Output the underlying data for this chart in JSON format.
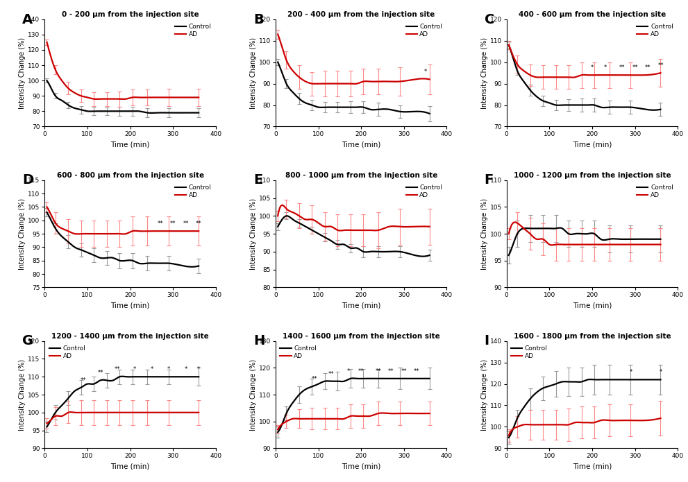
{
  "panels": [
    {
      "label": "A",
      "title": "0 - 200 μm from the injection site",
      "ylim": [
        70,
        140
      ],
      "ytick_step": 10,
      "control": [
        100,
        95,
        90,
        87,
        84,
        82,
        81,
        80,
        80,
        80,
        80,
        80,
        80,
        80,
        80,
        80,
        79,
        79,
        79,
        79,
        79
      ],
      "ad": [
        125,
        115,
        107,
        100,
        95,
        92,
        90,
        89,
        88,
        88,
        88,
        88,
        88,
        88,
        89,
        89,
        89,
        89,
        89,
        89,
        89
      ],
      "control_err": [
        1.5,
        1.5,
        1.8,
        2.0,
        2.0,
        2.2,
        2.5,
        2.5,
        2.5,
        2.5,
        2.5,
        2.5,
        2.8,
        2.8,
        2.8,
        2.8,
        2.8,
        3.0,
        3.0,
        3.0,
        3.0
      ],
      "ad_err": [
        2.0,
        2.5,
        3.0,
        3.5,
        4.0,
        4.0,
        4.0,
        4.0,
        4.5,
        4.5,
        4.5,
        4.5,
        5.0,
        5.0,
        5.0,
        5.0,
        5.0,
        5.5,
        5.5,
        5.5,
        5.5
      ],
      "sig_times": [],
      "sig_labels": [],
      "legend_loc": "upper right"
    },
    {
      "label": "B",
      "title": "200 - 400 μm from the injection site",
      "ylim": [
        70,
        120
      ],
      "ytick_step": 10,
      "control": [
        100,
        95,
        90,
        86,
        83,
        81,
        80,
        79,
        79,
        79,
        79,
        79,
        79,
        79,
        79,
        78,
        78,
        78,
        77,
        77,
        76
      ],
      "ad": [
        113,
        107,
        101,
        96,
        93,
        91,
        90,
        90,
        90,
        90,
        90,
        90,
        90,
        90,
        91,
        91,
        91,
        91,
        91,
        92,
        92
      ],
      "control_err": [
        1.5,
        1.8,
        2.0,
        2.2,
        2.5,
        2.5,
        2.5,
        2.5,
        2.5,
        2.5,
        2.5,
        2.8,
        2.8,
        2.8,
        2.8,
        3.0,
        3.0,
        3.0,
        3.0,
        3.0,
        3.5
      ],
      "ad_err": [
        2.0,
        3.0,
        4.0,
        5.0,
        5.5,
        5.5,
        5.5,
        5.5,
        6.0,
        6.0,
        6.0,
        6.0,
        6.0,
        6.0,
        6.0,
        6.0,
        6.0,
        6.5,
        6.5,
        6.5,
        7.0
      ],
      "sig_times": [
        350
      ],
      "sig_labels": [
        "*"
      ],
      "legend_loc": "upper right"
    },
    {
      "label": "C",
      "title": "400 - 600 μm from the injection site",
      "ylim": [
        70,
        120
      ],
      "ytick_step": 10,
      "control": [
        108,
        102,
        96,
        91,
        87,
        84,
        82,
        81,
        80,
        80,
        80,
        80,
        80,
        80,
        80,
        79,
        79,
        79,
        79,
        78,
        78
      ],
      "ad": [
        108,
        103,
        99,
        96,
        94,
        93,
        93,
        93,
        93,
        93,
        93,
        93,
        94,
        94,
        94,
        94,
        94,
        94,
        94,
        94,
        95
      ],
      "control_err": [
        1.5,
        1.8,
        2.0,
        2.2,
        2.5,
        2.5,
        2.5,
        2.5,
        2.5,
        2.8,
        2.8,
        2.8,
        3.0,
        3.0,
        3.0,
        3.0,
        3.0,
        3.0,
        3.0,
        3.0,
        3.0
      ],
      "ad_err": [
        2.0,
        3.0,
        4.0,
        5.0,
        5.0,
        5.0,
        5.5,
        5.5,
        5.5,
        5.5,
        5.5,
        5.5,
        6.0,
        6.0,
        6.0,
        6.0,
        6.0,
        6.0,
        6.0,
        6.5,
        6.5
      ],
      "sig_times": [
        200,
        230,
        270,
        300,
        330,
        360
      ],
      "sig_labels": [
        "*",
        "*",
        "**",
        "**",
        "**",
        "**"
      ],
      "legend_loc": "upper right"
    },
    {
      "label": "D",
      "title": "600 - 800 μm from the injection site",
      "ylim": [
        75,
        115
      ],
      "ytick_step": 5,
      "control": [
        103,
        100,
        97,
        94,
        92,
        90,
        89,
        88,
        87,
        86,
        86,
        86,
        85,
        85,
        85,
        84,
        84,
        84,
        84,
        83,
        83
      ],
      "ad": [
        105,
        102,
        99,
        97,
        96,
        95,
        95,
        95,
        95,
        95,
        95,
        95,
        95,
        95,
        96,
        96,
        96,
        96,
        96,
        96,
        96
      ],
      "control_err": [
        1.5,
        1.8,
        2.0,
        2.2,
        2.5,
        2.5,
        2.5,
        2.5,
        2.5,
        2.5,
        2.5,
        2.8,
        2.8,
        2.8,
        2.8,
        2.8,
        2.8,
        2.8,
        2.8,
        2.8,
        2.8
      ],
      "ad_err": [
        2.0,
        3.0,
        4.0,
        4.5,
        4.5,
        5.0,
        5.0,
        5.0,
        5.0,
        5.0,
        5.0,
        5.0,
        5.0,
        5.0,
        5.5,
        5.5,
        5.5,
        5.5,
        5.5,
        5.5,
        5.5
      ],
      "sig_times": [
        270,
        300,
        330,
        360
      ],
      "sig_labels": [
        "**",
        "**",
        "**",
        "**"
      ],
      "legend_loc": "upper right"
    },
    {
      "label": "E",
      "title": "800 - 1000 μm from the injection site",
      "ylim": [
        80,
        110
      ],
      "ytick_step": 5,
      "control": [
        97,
        99,
        100,
        99,
        98,
        97,
        96,
        95,
        94,
        93,
        92,
        92,
        91,
        91,
        90,
        90,
        90,
        90,
        90,
        89,
        89
      ],
      "ad": [
        100,
        103,
        102,
        101,
        100,
        99,
        99,
        98,
        97,
        97,
        96,
        96,
        96,
        96,
        96,
        96,
        96,
        97,
        97,
        97,
        97
      ],
      "control_err": [
        1.0,
        1.0,
        1.0,
        1.0,
        1.0,
        1.0,
        1.0,
        1.2,
        1.2,
        1.2,
        1.2,
        1.2,
        1.2,
        1.2,
        1.5,
        1.5,
        1.5,
        1.5,
        1.5,
        1.5,
        1.5
      ],
      "ad_err": [
        1.5,
        2.0,
        2.5,
        3.0,
        3.5,
        3.5,
        4.0,
        4.0,
        4.0,
        4.0,
        4.5,
        4.5,
        4.5,
        4.5,
        4.5,
        4.5,
        5.0,
        5.0,
        5.0,
        5.0,
        5.0
      ],
      "sig_times": [],
      "sig_labels": [],
      "legend_loc": "upper right"
    },
    {
      "label": "F",
      "title": "1000 - 1200 μm from the injection site",
      "ylim": [
        90,
        110
      ],
      "ytick_step": 5,
      "control": [
        96,
        98,
        100,
        101,
        101,
        101,
        101,
        101,
        101,
        101,
        100,
        100,
        100,
        100,
        100,
        99,
        99,
        99,
        99,
        99,
        99
      ],
      "ad": [
        100,
        102,
        102,
        101,
        100,
        99,
        99,
        98,
        98,
        98,
        98,
        98,
        98,
        98,
        98,
        98,
        98,
        98,
        98,
        98,
        98
      ],
      "control_err": [
        1.5,
        2.0,
        2.5,
        2.5,
        2.5,
        2.5,
        2.5,
        2.5,
        2.5,
        2.5,
        2.5,
        2.5,
        2.5,
        2.5,
        2.5,
        2.5,
        2.5,
        2.5,
        2.5,
        2.5,
        2.5
      ],
      "ad_err": [
        1.0,
        1.5,
        2.0,
        2.5,
        3.0,
        3.0,
        3.0,
        3.0,
        3.0,
        3.0,
        3.0,
        3.0,
        3.0,
        3.0,
        3.0,
        3.0,
        3.0,
        3.0,
        3.0,
        3.0,
        3.0
      ],
      "sig_times": [],
      "sig_labels": [],
      "legend_loc": "upper right"
    },
    {
      "label": "G",
      "title": "1200 - 1400 μm from the injection site",
      "ylim": [
        90,
        120
      ],
      "ytick_step": 5,
      "control": [
        96,
        98,
        100,
        102,
        104,
        106,
        107,
        108,
        108,
        109,
        109,
        109,
        110,
        110,
        110,
        110,
        110,
        110,
        110,
        110,
        110
      ],
      "ad": [
        97,
        98,
        99,
        99,
        100,
        100,
        100,
        100,
        100,
        100,
        100,
        100,
        100,
        100,
        100,
        100,
        100,
        100,
        100,
        100,
        100
      ],
      "control_err": [
        1.5,
        1.5,
        2.0,
        2.0,
        2.0,
        2.0,
        2.0,
        2.0,
        2.0,
        2.0,
        2.0,
        2.0,
        2.0,
        2.0,
        2.0,
        2.0,
        2.0,
        2.0,
        2.0,
        2.5,
        2.5
      ],
      "ad_err": [
        1.5,
        2.0,
        2.5,
        3.0,
        3.0,
        3.0,
        3.5,
        3.5,
        3.5,
        3.5,
        3.5,
        3.5,
        3.5,
        3.5,
        3.5,
        3.5,
        3.5,
        3.5,
        3.5,
        3.5,
        3.5
      ],
      "sig_times": [
        90,
        130,
        170,
        210,
        250,
        290,
        330,
        360
      ],
      "sig_labels": [
        "**",
        "**",
        "**",
        "*",
        "*",
        "*",
        "*",
        "*"
      ],
      "legend_loc": "upper left"
    },
    {
      "label": "H",
      "title": "1400 - 1600 μm from the injection site",
      "ylim": [
        90,
        130
      ],
      "ytick_step": 10,
      "control": [
        96,
        99,
        103,
        107,
        110,
        112,
        113,
        114,
        115,
        115,
        115,
        115,
        116,
        116,
        116,
        116,
        116,
        116,
        116,
        116,
        116
      ],
      "ad": [
        97,
        99,
        100,
        101,
        101,
        101,
        101,
        101,
        101,
        101,
        101,
        101,
        102,
        102,
        102,
        102,
        103,
        103,
        103,
        103,
        103
      ],
      "control_err": [
        2.0,
        2.0,
        2.5,
        2.5,
        3.0,
        3.0,
        3.0,
        3.0,
        3.0,
        3.5,
        3.5,
        3.5,
        3.5,
        3.5,
        3.5,
        3.5,
        3.5,
        4.0,
        4.0,
        4.0,
        4.0
      ],
      "ad_err": [
        1.5,
        2.0,
        2.5,
        3.0,
        3.5,
        3.5,
        4.0,
        4.0,
        4.0,
        4.0,
        4.0,
        4.0,
        4.5,
        4.5,
        4.5,
        4.5,
        4.5,
        4.5,
        4.5,
        4.5,
        4.5
      ],
      "sig_times": [
        90,
        130,
        170,
        200,
        240,
        270,
        300,
        330
      ],
      "sig_labels": [
        "**",
        "**",
        "*",
        "**",
        "**",
        "**",
        "**",
        "**"
      ],
      "legend_loc": "upper left"
    },
    {
      "label": "I",
      "title": "1600 - 1800 μm from the injection site",
      "ylim": [
        90,
        140
      ],
      "ytick_step": 10,
      "control": [
        95,
        99,
        104,
        109,
        113,
        116,
        118,
        119,
        120,
        121,
        121,
        121,
        121,
        122,
        122,
        122,
        122,
        122,
        122,
        122,
        122
      ],
      "ad": [
        96,
        99,
        100,
        101,
        101,
        101,
        101,
        101,
        101,
        101,
        101,
        102,
        102,
        102,
        102,
        103,
        103,
        103,
        103,
        103,
        104
      ],
      "control_err": [
        3.0,
        3.5,
        4.0,
        4.5,
        5.0,
        5.5,
        5.5,
        6.0,
        6.0,
        6.0,
        6.5,
        6.5,
        6.5,
        6.5,
        7.0,
        7.0,
        7.0,
        7.0,
        7.0,
        7.0,
        7.0
      ],
      "ad_err": [
        3.0,
        4.0,
        5.0,
        6.0,
        7.0,
        7.0,
        7.0,
        7.0,
        7.0,
        7.5,
        7.5,
        7.5,
        7.5,
        7.5,
        7.5,
        7.5,
        7.5,
        7.5,
        7.5,
        8.0,
        8.0
      ],
      "sig_times": [
        290,
        360
      ],
      "sig_labels": [
        "*",
        "*"
      ],
      "legend_loc": "upper left"
    }
  ],
  "time_points": [
    5,
    15,
    25,
    40,
    55,
    70,
    85,
    100,
    115,
    130,
    145,
    160,
    175,
    190,
    205,
    220,
    240,
    265,
    290,
    325,
    360
  ],
  "xlabel": "Time (min)",
  "ylabel": "Intensity Change (%)",
  "control_color": "#000000",
  "ad_color": "#cc0000",
  "control_err_color": "#999999",
  "ad_err_color": "#ff8888"
}
